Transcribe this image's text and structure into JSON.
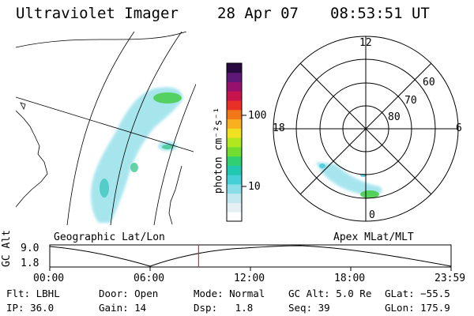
{
  "header": {
    "instrument": "Ultraviolet Imager",
    "date": "28 Apr 07",
    "time": "08:53:51 UT"
  },
  "maps": {
    "left_label": "Geographic Lat/Lon",
    "right_label": "Apex MLat/MLT",
    "polar_mlt_labels": {
      "top": "12",
      "bottom": "0",
      "left": "18",
      "right": "6"
    },
    "polar_lat_labels": [
      "60",
      "70",
      "80"
    ]
  },
  "colorbar": {
    "label": "photon cm⁻²s⁻¹",
    "ticks": [
      "100",
      "10"
    ],
    "colors": [
      "#ffffff",
      "#e6f0f4",
      "#c4e8f0",
      "#88dde8",
      "#45d0d8",
      "#20c8b0",
      "#30d070",
      "#70dd30",
      "#b0e820",
      "#f0e020",
      "#f8b020",
      "#f07818",
      "#e83028",
      "#c8144c",
      "#98106e",
      "#601878",
      "#280a40"
    ]
  },
  "timeline": {
    "ylabel": "GC Alt",
    "yticks": [
      "9.0",
      "1.8"
    ],
    "xticks": [
      "00:00",
      "06:00",
      "12:00",
      "18:00",
      "23:59"
    ],
    "marker_hour": 8.9
  },
  "info": {
    "flt": "Flt: LBHL",
    "ip": "IP: 36.0",
    "door": "Door: Open",
    "gain": "Gain: 14",
    "mode": "Mode: Normal",
    "dsp": "Dsp:   1.8",
    "gcalt": "GC Alt: 5.0 Re",
    "seq": "Seq: 39",
    "glat": "GLat: −55.5",
    "glon": "GLon: 175.9"
  },
  "colors": {
    "marker": "#d03030",
    "aurora_core": "#40cc40",
    "aurora_halo": "#40c8d8"
  }
}
